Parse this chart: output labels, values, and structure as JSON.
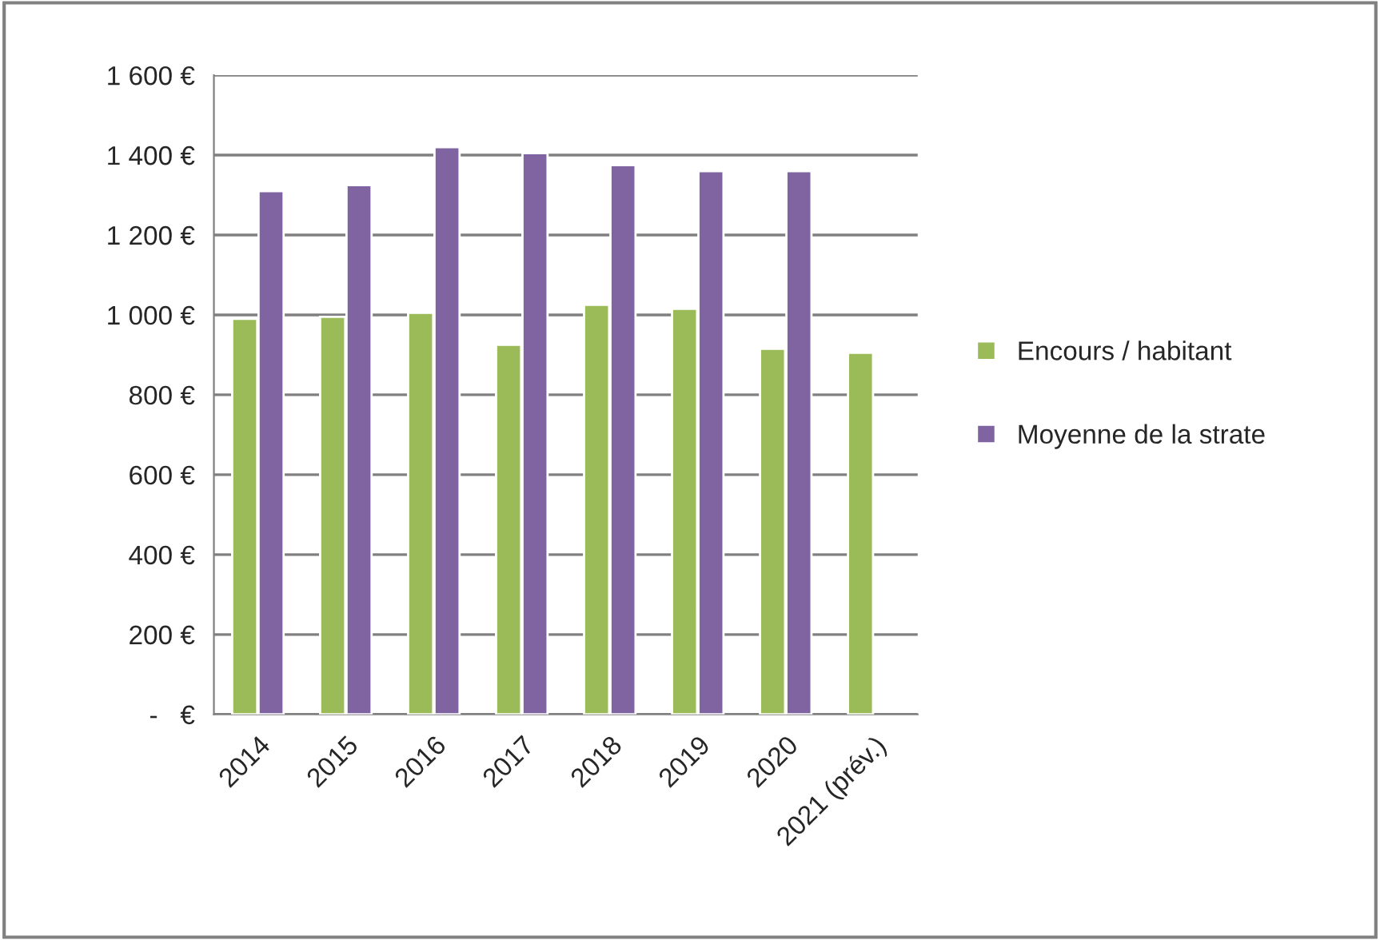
{
  "chart_data": {
    "type": "bar",
    "categories": [
      "2014",
      "2015",
      "2016",
      "2017",
      "2018",
      "2019",
      "2020",
      "2021 (prév.)"
    ],
    "series": [
      {
        "name": "Encours / habitant",
        "color": "#9bbb59",
        "values": [
          990,
          995,
          1005,
          925,
          1025,
          1015,
          915,
          905
        ]
      },
      {
        "name": "Moyenne de la strate",
        "color": "#8064a2",
        "values": [
          1310,
          1325,
          1420,
          1405,
          1375,
          1360,
          1360,
          null
        ]
      }
    ],
    "ylim": [
      0,
      1600
    ],
    "yticks": [
      {
        "value": 0,
        "label": "-   €"
      },
      {
        "value": 200,
        "label": "200 €"
      },
      {
        "value": 400,
        "label": "400 €"
      },
      {
        "value": 600,
        "label": "600 €"
      },
      {
        "value": 800,
        "label": "800 €"
      },
      {
        "value": 1000,
        "label": "1 000 €"
      },
      {
        "value": 1200,
        "label": "1 200 €"
      },
      {
        "value": 1400,
        "label": "1 400 €"
      },
      {
        "value": 1600,
        "label": "1 600 €"
      }
    ],
    "grid": "y",
    "legend": "right"
  }
}
